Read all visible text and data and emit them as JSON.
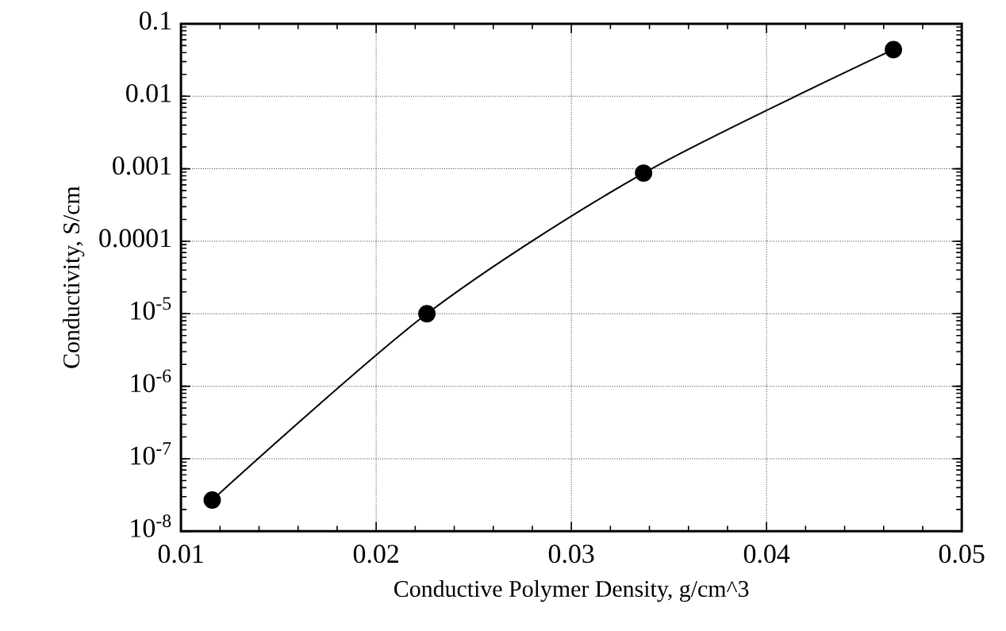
{
  "chart_data": {
    "type": "line",
    "xlabel": "Conductive Polymer Density, g/cm^3",
    "ylabel": "Conductivity, S/cm",
    "x": [
      0.0116,
      0.0226,
      0.0337,
      0.0465
    ],
    "values": [
      2.7e-08,
      1e-05,
      0.00087,
      0.044
    ],
    "color": "#000000",
    "marker": "circle",
    "line_style": "solid",
    "log": "y",
    "grid": true,
    "xlim": [
      0.01,
      0.05
    ],
    "xticks": [
      0.01,
      0.02,
      0.03,
      0.04,
      0.05
    ],
    "ylim": [
      1e-08,
      0.1
    ],
    "yticks": [
      {
        "value": 1e-08,
        "label": "10$^{-8}$"
      },
      {
        "value": 1e-07,
        "label": "10$^{-7}$"
      },
      {
        "value": 1e-06,
        "label": "10$^{-6}$"
      },
      {
        "value": 1e-05,
        "label": "10$^{-5}$"
      },
      0.0001,
      0.001,
      0.01,
      0.1
    ]
  }
}
